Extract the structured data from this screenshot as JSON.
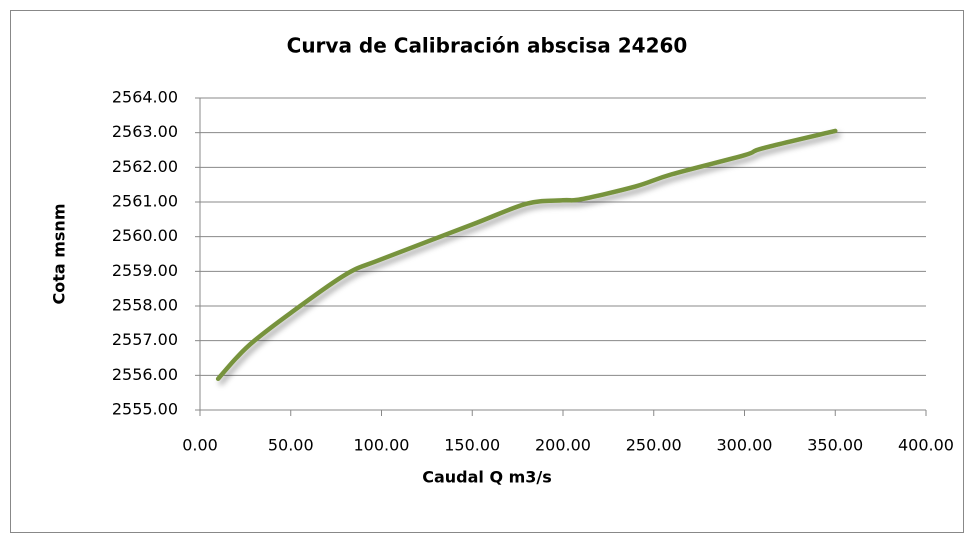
{
  "chart_data": {
    "type": "line",
    "title": "Curva de Calibración abscisa 24260",
    "xlabel": "Caudal Q m3/s",
    "ylabel": "Cota msnm",
    "x": [
      10,
      20,
      30,
      50,
      80,
      100,
      150,
      180,
      200,
      210,
      240,
      260,
      300,
      310,
      350
    ],
    "values": [
      2555.9,
      2556.5,
      2557.0,
      2557.8,
      2558.9,
      2559.35,
      2560.35,
      2560.95,
      2561.05,
      2561.08,
      2561.45,
      2561.8,
      2562.35,
      2562.55,
      2563.05
    ],
    "color": "#77933c",
    "xlim": [
      0,
      400
    ],
    "xticks": [
      {
        "value": 0,
        "label": "0.00"
      },
      {
        "value": 50,
        "label": "50.00"
      },
      {
        "value": 100,
        "label": "100.00"
      },
      {
        "value": 150,
        "label": "150.00"
      },
      {
        "value": 200,
        "label": "200.00"
      },
      {
        "value": 250,
        "label": "250.00"
      },
      {
        "value": 300,
        "label": "300.00"
      },
      {
        "value": 350,
        "label": "350.00"
      },
      {
        "value": 400,
        "label": "400.00"
      }
    ],
    "ylim": [
      2555,
      2564
    ],
    "yticks": [
      {
        "value": 2555,
        "label": "2555.00"
      },
      {
        "value": 2556,
        "label": "2556.00"
      },
      {
        "value": 2557,
        "label": "2557.00"
      },
      {
        "value": 2558,
        "label": "2558.00"
      },
      {
        "value": 2559,
        "label": "2559.00"
      },
      {
        "value": 2560,
        "label": "2560.00"
      },
      {
        "value": 2561,
        "label": "2561.00"
      },
      {
        "value": 2562,
        "label": "2562.00"
      },
      {
        "value": 2563,
        "label": "2563.00"
      },
      {
        "value": 2564,
        "label": "2564.00"
      }
    ],
    "grid": true
  }
}
